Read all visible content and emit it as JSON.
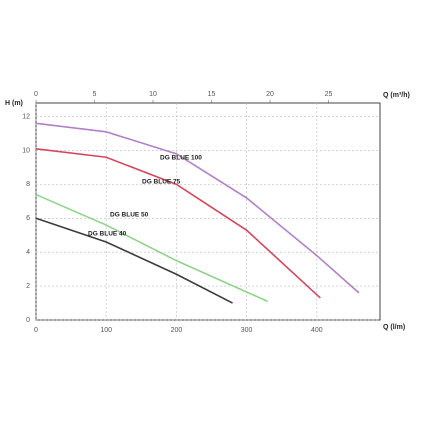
{
  "chart_data": {
    "type": "line",
    "x_label": "Q (l/m)",
    "x2_label": "Q (m³/h)",
    "y_label": "H (m)",
    "xlim": [
      0,
      490
    ],
    "xticks": [
      0,
      100,
      200,
      300,
      400
    ],
    "x2lim": [
      0,
      29.4
    ],
    "x2ticks": [
      0,
      5,
      10,
      15,
      20,
      25
    ],
    "ylim": [
      0,
      12.8
    ],
    "yticks": [
      0,
      2,
      4,
      6,
      8,
      10,
      12
    ],
    "grid": true,
    "series": [
      {
        "name": "DG BLUE 100",
        "color": "#b27fc8",
        "x": [
          0,
          100,
          200,
          300,
          400,
          460
        ],
        "values": [
          11.6,
          11.1,
          9.8,
          7.2,
          3.8,
          1.6
        ]
      },
      {
        "name": "DG BLUE 75",
        "color": "#d4475a",
        "x": [
          0,
          100,
          200,
          300,
          405
        ],
        "values": [
          10.1,
          9.6,
          8.0,
          5.3,
          1.3
        ]
      },
      {
        "name": "DG BLUE 50",
        "color": "#8fd38b",
        "x": [
          0,
          100,
          200,
          330
        ],
        "values": [
          7.4,
          5.6,
          3.5,
          1.1
        ]
      },
      {
        "name": "DG BLUE 40",
        "color": "#3c3c3c",
        "x": [
          0,
          100,
          200,
          280
        ],
        "values": [
          6.0,
          4.6,
          2.7,
          1.0
        ]
      }
    ]
  }
}
